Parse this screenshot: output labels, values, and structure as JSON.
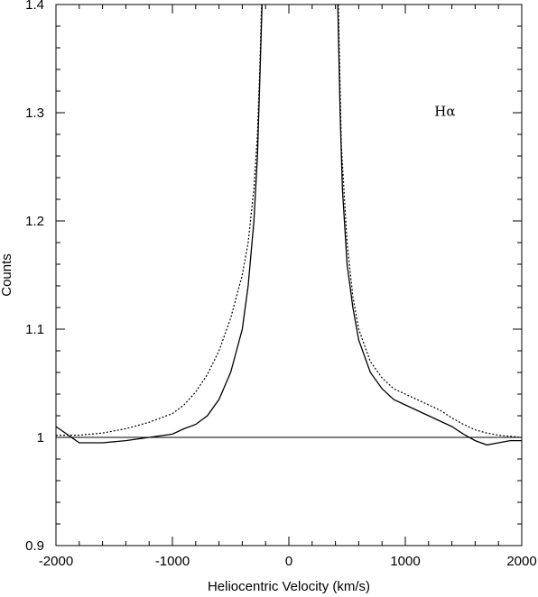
{
  "chart_data": {
    "type": "line",
    "xlabel": "Heliocentric Velocity (km/s)",
    "ylabel": "Counts",
    "xlim": [
      -2000,
      2000
    ],
    "ylim": [
      0.9,
      1.4
    ],
    "x_ticks": [
      -2000,
      -1000,
      0,
      1000,
      2000
    ],
    "x_tick_labels": [
      "-2000",
      "-1000",
      "0",
      "1000",
      "2000"
    ],
    "y_ticks": [
      0.9,
      1.0,
      1.1,
      1.2,
      1.3,
      1.4
    ],
    "y_tick_labels": [
      "0.9",
      "1",
      "1.1",
      "1.2",
      "1.3",
      "1.4"
    ],
    "grid": false,
    "reference_line": {
      "y": 1.0
    },
    "annotations": [
      {
        "text": "Hα",
        "x": 1340,
        "y": 1.297
      }
    ],
    "series": [
      {
        "style": "solid",
        "color": "#000000",
        "x": [
          -2000,
          -1800,
          -1600,
          -1400,
          -1200,
          -1000,
          -900,
          -800,
          -700,
          -600,
          -500,
          -450,
          -400,
          -350,
          -300,
          -270,
          -250,
          -230,
          420,
          440,
          460,
          500,
          550,
          600,
          700,
          800,
          900,
          1000,
          1100,
          1200,
          1300,
          1400,
          1500,
          1600,
          1700,
          1800,
          1900,
          2000
        ],
        "y": [
          1.01,
          0.995,
          0.995,
          0.997,
          1.0,
          1.003,
          1.008,
          1.012,
          1.02,
          1.035,
          1.06,
          1.08,
          1.1,
          1.14,
          1.2,
          1.26,
          1.33,
          1.4,
          1.4,
          1.3,
          1.23,
          1.16,
          1.12,
          1.09,
          1.06,
          1.045,
          1.035,
          1.03,
          1.025,
          1.02,
          1.015,
          1.01,
          1.003,
          0.997,
          0.993,
          0.995,
          0.997,
          0.997
        ]
      },
      {
        "style": "dotted",
        "color": "#000000",
        "x": [
          -2000,
          -1800,
          -1600,
          -1400,
          -1200,
          -1000,
          -900,
          -800,
          -700,
          -600,
          -500,
          -400,
          -350,
          -300,
          -270,
          -250,
          -235,
          425,
          450,
          500,
          550,
          600,
          700,
          800,
          900,
          1000,
          1100,
          1200,
          1300,
          1400,
          1500,
          1600,
          1700,
          1800,
          1900,
          2000
        ],
        "y": [
          1.002,
          1.002,
          1.004,
          1.008,
          1.014,
          1.022,
          1.03,
          1.042,
          1.058,
          1.08,
          1.11,
          1.15,
          1.18,
          1.23,
          1.28,
          1.34,
          1.4,
          1.4,
          1.27,
          1.18,
          1.13,
          1.1,
          1.07,
          1.055,
          1.045,
          1.04,
          1.035,
          1.03,
          1.025,
          1.018,
          1.012,
          1.007,
          1.004,
          1.002,
          1.001,
          1.0
        ]
      }
    ]
  }
}
